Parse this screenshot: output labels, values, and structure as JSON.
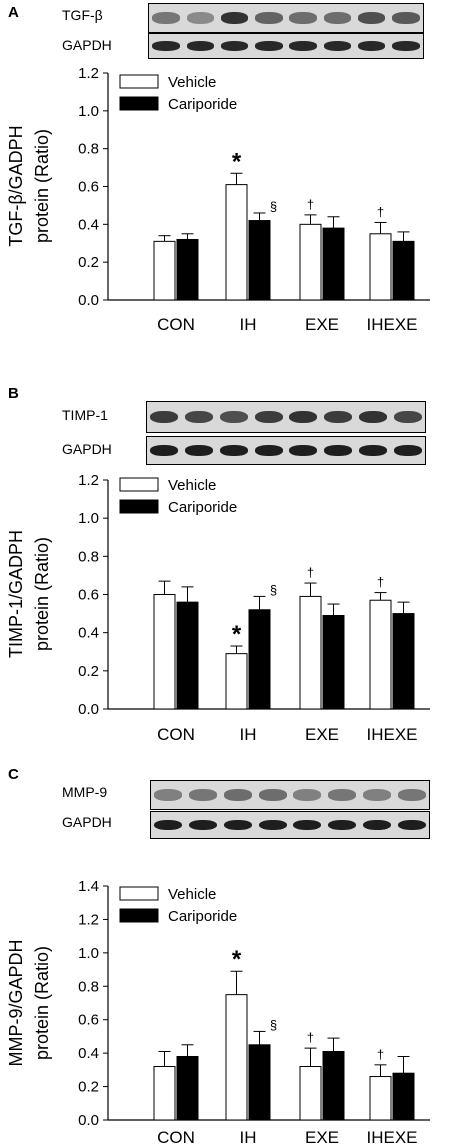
{
  "panels": [
    {
      "letter": "A",
      "blot_labels": [
        "TGF-β",
        "GAPDH"
      ],
      "legend": [
        "Vehicle",
        "Cariporide"
      ],
      "ylabel_lines": [
        "TGF-β/GADPH",
        "protein (Ratio)"
      ],
      "annotations": [
        {
          "symbol": "*",
          "category": 1,
          "series": 0
        },
        {
          "symbol": "§",
          "category": 1,
          "series": 1
        },
        {
          "symbol": "†",
          "category": 2,
          "series": 0
        },
        {
          "symbol": "†",
          "category": 3,
          "series": 0
        }
      ]
    },
    {
      "letter": "B",
      "blot_labels": [
        "TIMP-1",
        "GAPDH"
      ],
      "legend": [
        "Vehicle",
        "Cariporide"
      ],
      "ylabel_lines": [
        "TIMP-1/GADPH",
        "protein (Ratio)"
      ],
      "annotations": [
        {
          "symbol": "*",
          "category": 1,
          "series": 0
        },
        {
          "symbol": "§",
          "category": 1,
          "series": 1
        },
        {
          "symbol": "†",
          "category": 2,
          "series": 0
        },
        {
          "symbol": "†",
          "category": 3,
          "series": 0
        }
      ]
    },
    {
      "letter": "C",
      "blot_labels": [
        "MMP-9",
        "GAPDH"
      ],
      "legend": [
        "Vehicle",
        "Cariporide"
      ],
      "ylabel_lines": [
        "MMP-9/GAPDH",
        "protein (Ratio)"
      ],
      "annotations": [
        {
          "symbol": "*",
          "category": 1,
          "series": 0
        },
        {
          "symbol": "§",
          "category": 1,
          "series": 1
        },
        {
          "symbol": "†",
          "category": 2,
          "series": 0
        },
        {
          "symbol": "†",
          "category": 3,
          "series": 0
        }
      ]
    }
  ],
  "chart_data": [
    {
      "type": "bar",
      "categories": [
        "CON",
        "IH",
        "EXE",
        "IHEXE"
      ],
      "ylabel": "TGF-β/GADPH protein (Ratio)",
      "ylim": [
        0,
        1.2
      ],
      "yticks": [
        "0.0",
        "0.2",
        "0.4",
        "0.6",
        "0.8",
        "1.0",
        "1.2"
      ],
      "series": [
        {
          "name": "Vehicle",
          "values": [
            0.31,
            0.61,
            0.4,
            0.35
          ],
          "errors": [
            0.03,
            0.06,
            0.05,
            0.06
          ],
          "color": "#ffffff"
        },
        {
          "name": "Cariporide",
          "values": [
            0.32,
            0.42,
            0.38,
            0.31
          ],
          "errors": [
            0.03,
            0.04,
            0.06,
            0.05
          ],
          "color": "#000000"
        }
      ]
    },
    {
      "type": "bar",
      "categories": [
        "CON",
        "IH",
        "EXE",
        "IHEXE"
      ],
      "ylabel": "TIMP-1/GADPH protein (Ratio)",
      "ylim": [
        0,
        1.2
      ],
      "yticks": [
        "0.0",
        "0.2",
        "0.4",
        "0.6",
        "0.8",
        "1.0",
        "1.2"
      ],
      "series": [
        {
          "name": "Vehicle",
          "values": [
            0.6,
            0.29,
            0.59,
            0.57
          ],
          "errors": [
            0.07,
            0.04,
            0.07,
            0.04
          ],
          "color": "#ffffff"
        },
        {
          "name": "Cariporide",
          "values": [
            0.56,
            0.52,
            0.49,
            0.5
          ],
          "errors": [
            0.08,
            0.07,
            0.06,
            0.06
          ],
          "color": "#000000"
        }
      ]
    },
    {
      "type": "bar",
      "categories": [
        "CON",
        "IH",
        "EXE",
        "IHEXE"
      ],
      "ylabel": "MMP-9/GAPDH protein (Ratio)",
      "ylim": [
        0,
        1.4
      ],
      "yticks": [
        "0.0",
        "0.2",
        "0.4",
        "0.6",
        "0.8",
        "1.0",
        "1.2",
        "1.4"
      ],
      "series": [
        {
          "name": "Vehicle",
          "values": [
            0.32,
            0.75,
            0.32,
            0.26
          ],
          "errors": [
            0.09,
            0.14,
            0.11,
            0.07
          ],
          "color": "#ffffff"
        },
        {
          "name": "Cariporide",
          "values": [
            0.38,
            0.45,
            0.41,
            0.28
          ],
          "errors": [
            0.07,
            0.08,
            0.08,
            0.1
          ],
          "color": "#000000"
        }
      ]
    }
  ]
}
